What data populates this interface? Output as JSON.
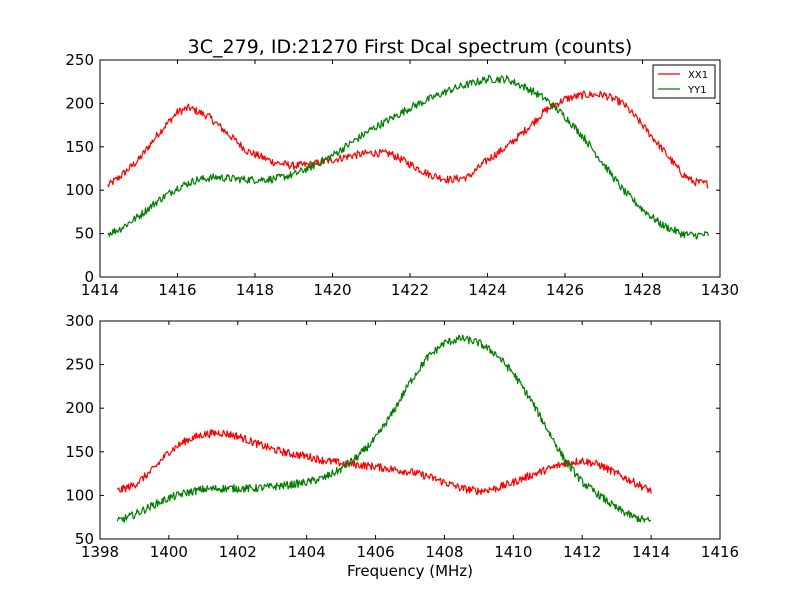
{
  "title": "3C_279, ID:21270 First Dcal spectrum (counts)",
  "colors": {
    "XX1": "#ff0000",
    "YY1": "#007f00"
  },
  "chart_data": [
    {
      "type": "line",
      "title": "3C_279, ID:21270 First Dcal spectrum (counts)",
      "xlabel": "",
      "ylabel": "",
      "xlim": [
        1414,
        1430
      ],
      "ylim": [
        0,
        250
      ],
      "x_ticks": [
        1414,
        1416,
        1418,
        1420,
        1422,
        1424,
        1426,
        1428,
        1430
      ],
      "y_ticks": [
        0,
        50,
        100,
        150,
        200,
        250
      ],
      "legend": {
        "position": "top-right",
        "entries": [
          "XX1",
          "YY1"
        ]
      },
      "grid": false,
      "x_range_data": [
        1414.2,
        1429.7
      ],
      "series": [
        {
          "name": "XX1",
          "color": "#ff0000",
          "x": [
            1414.2,
            1414.5,
            1415.0,
            1415.5,
            1416.0,
            1416.3,
            1416.8,
            1417.3,
            1417.8,
            1418.5,
            1419.0,
            1419.5,
            1420.0,
            1420.5,
            1421.0,
            1421.5,
            1422.0,
            1422.5,
            1423.0,
            1423.5,
            1424.0,
            1424.5,
            1425.0,
            1425.5,
            1426.0,
            1426.5,
            1427.0,
            1427.5,
            1428.0,
            1428.5,
            1429.0,
            1429.3,
            1429.7
          ],
          "y": [
            105,
            115,
            135,
            165,
            190,
            195,
            185,
            165,
            145,
            132,
            128,
            130,
            135,
            140,
            143,
            142,
            130,
            118,
            112,
            115,
            135,
            150,
            170,
            192,
            205,
            210,
            210,
            200,
            175,
            148,
            120,
            110,
            107
          ]
        },
        {
          "name": "YY1",
          "color": "#007f00",
          "x": [
            1414.2,
            1414.5,
            1415.0,
            1415.5,
            1416.0,
            1416.5,
            1417.0,
            1417.5,
            1418.0,
            1418.5,
            1419.0,
            1419.5,
            1420.0,
            1420.5,
            1421.0,
            1421.5,
            1422.0,
            1422.5,
            1423.0,
            1423.5,
            1424.0,
            1424.5,
            1425.0,
            1425.5,
            1426.0,
            1426.5,
            1427.0,
            1427.5,
            1428.0,
            1428.5,
            1429.0,
            1429.3,
            1429.7
          ],
          "y": [
            50,
            55,
            70,
            88,
            103,
            112,
            115,
            113,
            112,
            113,
            118,
            128,
            140,
            155,
            170,
            182,
            195,
            205,
            215,
            222,
            228,
            228,
            218,
            205,
            185,
            160,
            130,
            100,
            78,
            60,
            50,
            48,
            49
          ]
        }
      ]
    },
    {
      "type": "line",
      "title": "",
      "xlabel": "Frequency (MHz)",
      "ylabel": "",
      "xlim": [
        1398,
        1416
      ],
      "ylim": [
        50,
        300
      ],
      "x_ticks": [
        1398,
        1400,
        1402,
        1404,
        1406,
        1408,
        1410,
        1412,
        1414,
        1416
      ],
      "y_ticks": [
        50,
        100,
        150,
        200,
        250,
        300
      ],
      "grid": false,
      "series": [
        {
          "name": "XX1",
          "color": "#ff0000",
          "x": [
            1398.5,
            1399.0,
            1399.5,
            1400.0,
            1400.5,
            1401.0,
            1401.5,
            1402.0,
            1402.5,
            1403.0,
            1403.5,
            1404.0,
            1404.5,
            1405.0,
            1405.5,
            1406.0,
            1406.5,
            1407.0,
            1407.5,
            1408.0,
            1408.5,
            1409.0,
            1409.5,
            1410.0,
            1410.5,
            1411.0,
            1411.5,
            1412.0,
            1412.5,
            1413.0,
            1413.5,
            1414.0
          ],
          "y": [
            105,
            112,
            128,
            150,
            163,
            170,
            172,
            168,
            160,
            153,
            148,
            145,
            140,
            137,
            135,
            133,
            130,
            127,
            122,
            115,
            108,
            105,
            108,
            115,
            123,
            130,
            137,
            140,
            135,
            125,
            115,
            105
          ]
        },
        {
          "name": "YY1",
          "color": "#007f00",
          "x": [
            1398.5,
            1399.0,
            1399.5,
            1400.0,
            1400.5,
            1401.0,
            1401.5,
            1402.0,
            1402.5,
            1403.0,
            1403.5,
            1404.0,
            1404.5,
            1405.0,
            1405.5,
            1406.0,
            1406.5,
            1407.0,
            1407.5,
            1408.0,
            1408.5,
            1409.0,
            1409.5,
            1410.0,
            1410.5,
            1411.0,
            1411.5,
            1412.0,
            1412.5,
            1413.0,
            1413.5,
            1414.0
          ],
          "y": [
            70,
            78,
            88,
            97,
            103,
            107,
            108,
            108,
            108,
            110,
            112,
            115,
            120,
            130,
            145,
            165,
            195,
            230,
            258,
            275,
            280,
            275,
            262,
            240,
            210,
            175,
            140,
            115,
            100,
            85,
            75,
            70
          ]
        }
      ]
    }
  ]
}
